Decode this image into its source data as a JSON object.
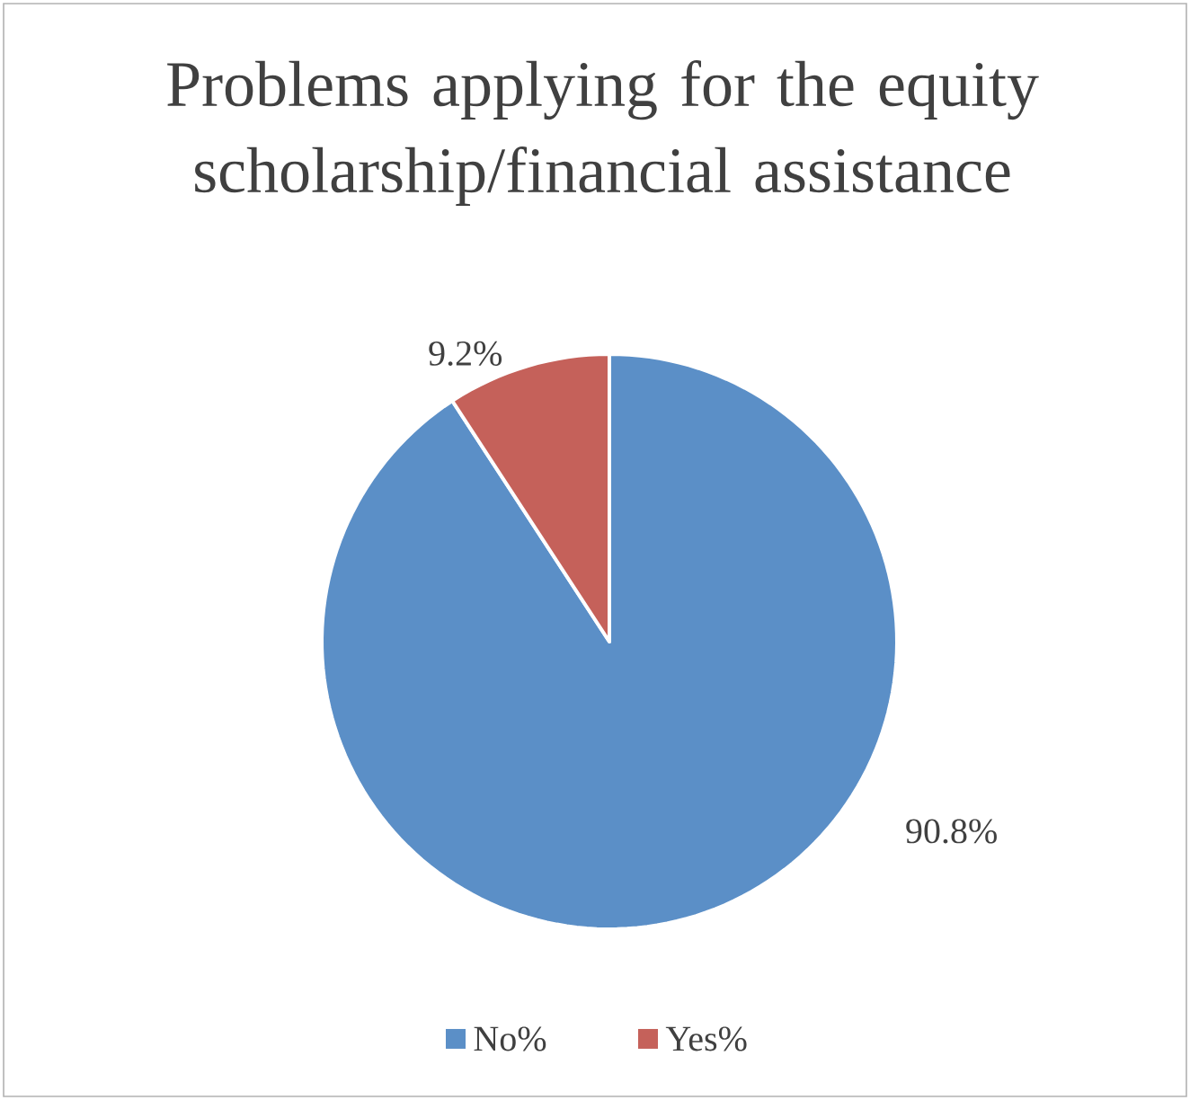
{
  "chart_data": {
    "type": "pie",
    "title": "Problems applying for the equity scholarship/financial assistance",
    "categories": [
      "No%",
      "Yes%"
    ],
    "values": [
      90.8,
      9.2
    ],
    "colors": [
      "#5b8fc7",
      "#c5615a"
    ],
    "value_labels": [
      "90.8%",
      "9.2%"
    ],
    "legend": "bottom"
  }
}
